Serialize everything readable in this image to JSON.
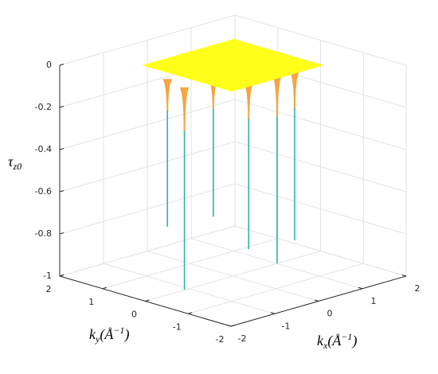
{
  "chart_data": {
    "type": "surface3d",
    "xlabel": [
      "k",
      "x",
      "(Å",
      "−1",
      ")"
    ],
    "ylabel": [
      "k",
      "y",
      "(Å",
      "−1",
      ")"
    ],
    "zlabel": [
      "τ",
      "z0"
    ],
    "xlim": [
      -2,
      2
    ],
    "ylim": [
      -2,
      2
    ],
    "zlim": [
      -1,
      0
    ],
    "xticks": [
      -2,
      -1,
      0,
      1,
      2
    ],
    "yticks": [
      -2,
      -1,
      0,
      1,
      2
    ],
    "zticks": [
      -1,
      -0.8,
      -0.6,
      -0.4,
      -0.2,
      0
    ],
    "grid": true,
    "surface_color": "#ffff1a",
    "spike_top_color": "#f5a542",
    "spike_color": "#2fb3a3",
    "spikes": {
      "kx": [
        -1.3,
        -1.43,
        -0.79,
        -0.54,
        0.1,
        0.46
      ],
      "ky": [
        0.2,
        -0.33,
        -0.35,
        -0.92,
        -0.93,
        -0.97
      ],
      "z": [
        -0.7,
        -0.96,
        -0.65,
        -0.785,
        -0.89,
        -0.8
      ]
    }
  }
}
